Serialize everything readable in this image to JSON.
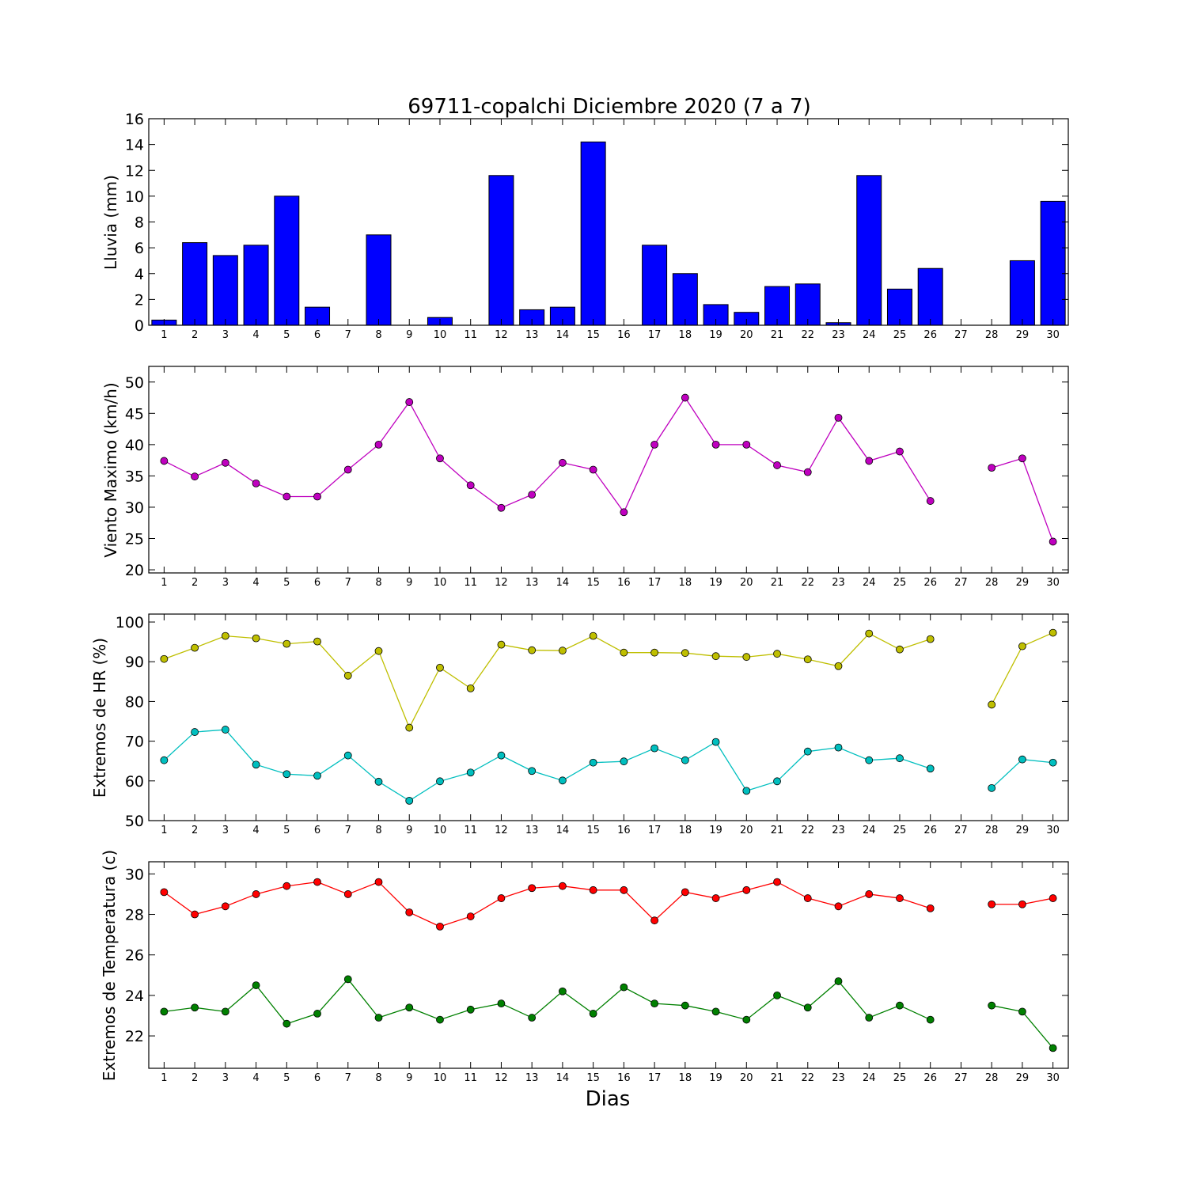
{
  "title": "69711-copalchi Diciembre 2020  (7 a 7)",
  "xlabel": "Dias",
  "chart_data": [
    {
      "type": "bar",
      "ylabel": "Lluvia (mm)",
      "ylim": [
        0,
        16
      ],
      "yticks": [
        0,
        2,
        4,
        6,
        8,
        10,
        12,
        14,
        16
      ],
      "xlim": [
        0.5,
        30.5
      ],
      "xticks": [
        1,
        2,
        3,
        4,
        5,
        6,
        7,
        8,
        9,
        10,
        11,
        12,
        13,
        14,
        15,
        16,
        17,
        18,
        19,
        20,
        21,
        22,
        23,
        24,
        25,
        26,
        27,
        28,
        29,
        30
      ],
      "colors": {
        "bar": "#0000ff"
      },
      "series": [
        {
          "x": [
            1,
            2,
            3,
            4,
            5,
            6,
            7,
            8,
            9,
            10,
            11,
            12,
            13,
            14,
            15,
            16,
            17,
            18,
            19,
            20,
            21,
            22,
            23,
            24,
            25,
            26,
            27,
            28,
            29,
            30
          ],
          "values": [
            0.4,
            6.4,
            5.4,
            6.2,
            10.0,
            1.4,
            0,
            7.0,
            0,
            0.6,
            0,
            11.6,
            1.2,
            1.4,
            14.2,
            0,
            6.2,
            4.0,
            1.6,
            1.0,
            3.0,
            3.2,
            0.2,
            11.6,
            2.8,
            4.4,
            0,
            0,
            5.0,
            9.6
          ]
        }
      ]
    },
    {
      "type": "line",
      "ylabel": "Viento Maximo (km/h)",
      "ylim": [
        19.5,
        52.5
      ],
      "yticks": [
        20,
        25,
        30,
        35,
        40,
        45,
        50
      ],
      "xlim": [
        0.5,
        30.5
      ],
      "xticks": [
        1,
        2,
        3,
        4,
        5,
        6,
        7,
        8,
        9,
        10,
        11,
        12,
        13,
        14,
        15,
        16,
        17,
        18,
        19,
        20,
        21,
        22,
        23,
        24,
        25,
        26,
        27,
        28,
        29,
        30
      ],
      "series": [
        {
          "color": "#bf00bf",
          "x": [
            1,
            2,
            3,
            4,
            5,
            6,
            7,
            8,
            9,
            10,
            11,
            12,
            13,
            14,
            15,
            16,
            17,
            18,
            19,
            20,
            21,
            22,
            23,
            24,
            25,
            26,
            27,
            28,
            29,
            30
          ],
          "values": [
            37.4,
            34.9,
            37.1,
            33.8,
            31.7,
            31.7,
            36.0,
            40.0,
            46.8,
            37.8,
            33.5,
            29.9,
            32.0,
            37.1,
            36.0,
            29.2,
            40.0,
            47.5,
            40.0,
            40.0,
            36.7,
            35.6,
            44.3,
            37.4,
            38.9,
            31.0,
            null,
            36.3,
            37.8,
            24.5
          ]
        }
      ]
    },
    {
      "type": "line",
      "ylabel": "Extremos de HR (%)",
      "ylim": [
        50,
        102
      ],
      "yticks": [
        50,
        60,
        70,
        80,
        90,
        100
      ],
      "xlim": [
        0.5,
        30.5
      ],
      "xticks": [
        1,
        2,
        3,
        4,
        5,
        6,
        7,
        8,
        9,
        10,
        11,
        12,
        13,
        14,
        15,
        16,
        17,
        18,
        19,
        20,
        21,
        22,
        23,
        24,
        25,
        26,
        27,
        28,
        29,
        30
      ],
      "series": [
        {
          "color": "#bfbf00",
          "x": [
            1,
            2,
            3,
            4,
            5,
            6,
            7,
            8,
            9,
            10,
            11,
            12,
            13,
            14,
            15,
            16,
            17,
            18,
            19,
            20,
            21,
            22,
            23,
            24,
            25,
            26,
            27,
            28,
            29,
            30
          ],
          "values": [
            90.7,
            93.5,
            96.5,
            95.9,
            94.5,
            95.1,
            86.5,
            92.7,
            73.4,
            88.5,
            83.3,
            94.3,
            92.9,
            92.8,
            96.5,
            92.3,
            92.3,
            92.2,
            91.4,
            91.2,
            92.0,
            90.6,
            88.9,
            97.1,
            93.1,
            95.7,
            null,
            79.2,
            93.9,
            97.3
          ]
        },
        {
          "color": "#00bfbf",
          "x": [
            1,
            2,
            3,
            4,
            5,
            6,
            7,
            8,
            9,
            10,
            11,
            12,
            13,
            14,
            15,
            16,
            17,
            18,
            19,
            20,
            21,
            22,
            23,
            24,
            25,
            26,
            27,
            28,
            29,
            30
          ],
          "values": [
            65.2,
            72.3,
            72.9,
            64.1,
            61.7,
            61.3,
            66.4,
            59.8,
            55.0,
            59.9,
            62.1,
            66.4,
            62.5,
            60.1,
            64.6,
            64.9,
            68.2,
            65.2,
            69.8,
            57.5,
            59.9,
            67.4,
            68.4,
            65.2,
            65.7,
            63.1,
            null,
            58.2,
            65.4,
            64.6
          ]
        }
      ]
    },
    {
      "type": "line",
      "ylabel": "Extremos de Temperatura (c)",
      "ylim": [
        20.4,
        30.6
      ],
      "yticks": [
        22,
        24,
        26,
        28,
        30
      ],
      "xlim": [
        0.5,
        30.5
      ],
      "xticks": [
        1,
        2,
        3,
        4,
        5,
        6,
        7,
        8,
        9,
        10,
        11,
        12,
        13,
        14,
        15,
        16,
        17,
        18,
        19,
        20,
        21,
        22,
        23,
        24,
        25,
        26,
        27,
        28,
        29,
        30
      ],
      "series": [
        {
          "color": "#ff0000",
          "x": [
            1,
            2,
            3,
            4,
            5,
            6,
            7,
            8,
            9,
            10,
            11,
            12,
            13,
            14,
            15,
            16,
            17,
            18,
            19,
            20,
            21,
            22,
            23,
            24,
            25,
            26,
            27,
            28,
            29,
            30
          ],
          "values": [
            29.1,
            28.0,
            28.4,
            29.0,
            29.4,
            29.6,
            29.0,
            29.6,
            28.1,
            27.4,
            27.9,
            28.8,
            29.3,
            29.4,
            29.2,
            29.2,
            27.7,
            29.1,
            28.8,
            29.2,
            29.6,
            28.8,
            28.4,
            29.0,
            28.8,
            28.3,
            null,
            28.5,
            28.5,
            28.8
          ]
        },
        {
          "color": "#008000",
          "x": [
            1,
            2,
            3,
            4,
            5,
            6,
            7,
            8,
            9,
            10,
            11,
            12,
            13,
            14,
            15,
            16,
            17,
            18,
            19,
            20,
            21,
            22,
            23,
            24,
            25,
            26,
            27,
            28,
            29,
            30
          ],
          "values": [
            23.2,
            23.4,
            23.2,
            24.5,
            22.6,
            23.1,
            24.8,
            22.9,
            23.4,
            22.8,
            23.3,
            23.6,
            22.9,
            24.2,
            23.1,
            24.4,
            23.6,
            23.5,
            23.2,
            22.8,
            24.0,
            23.4,
            24.7,
            22.9,
            23.5,
            22.8,
            null,
            23.5,
            23.2,
            21.4
          ]
        }
      ]
    }
  ]
}
